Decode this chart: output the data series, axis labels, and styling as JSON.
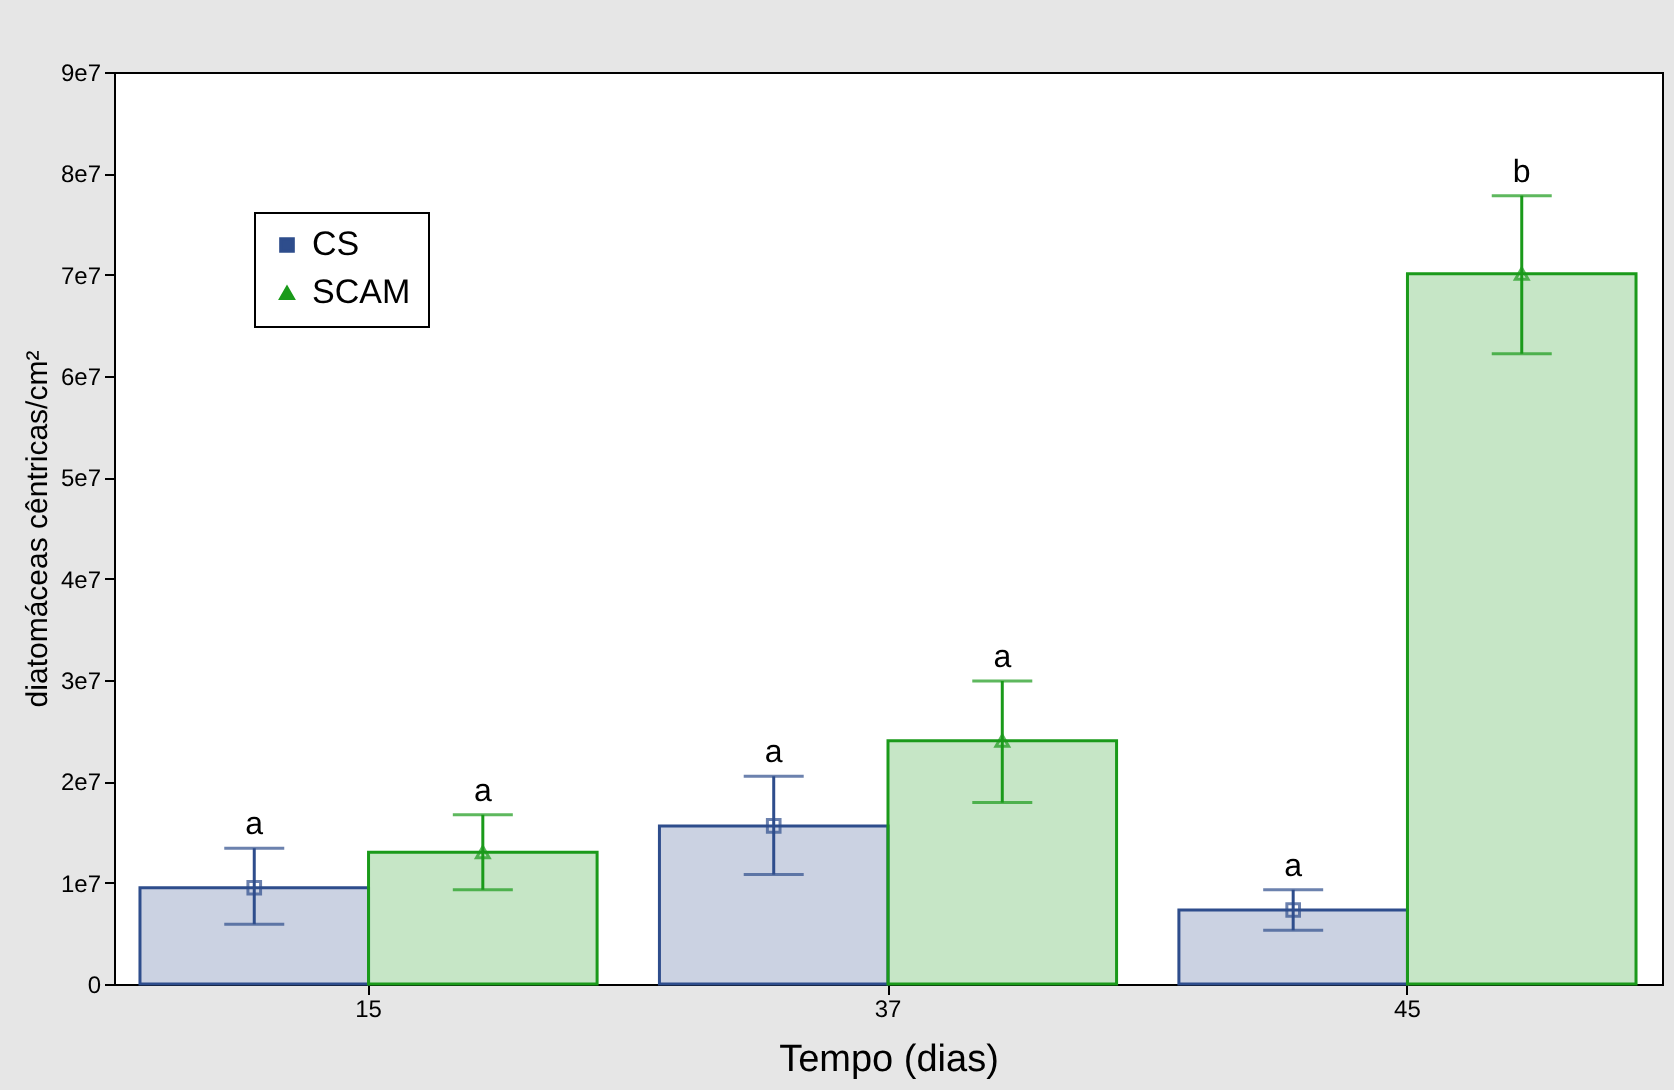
{
  "chart_data": {
    "type": "bar",
    "xlabel": "Tempo (dias)",
    "ylabel": "diatomáceas cêntricas/cm²",
    "categories": [
      "15",
      "37",
      "45"
    ],
    "ylim": [
      0,
      90000000
    ],
    "yticks": [
      0,
      {
        "value": 10000000,
        "label": "1e7"
      },
      {
        "value": 20000000,
        "label": "2e7"
      },
      {
        "value": 30000000,
        "label": "3e7"
      },
      {
        "value": 40000000,
        "label": "4e7"
      },
      {
        "value": 50000000,
        "label": "5e7"
      },
      {
        "value": 60000000,
        "label": "6e7"
      },
      {
        "value": 70000000,
        "label": "7e7"
      },
      {
        "value": 80000000,
        "label": "8e7"
      },
      {
        "value": 90000000,
        "label": "9e7"
      }
    ],
    "grid": false,
    "legend": "top left",
    "series": [
      {
        "name": "CS",
        "color": "#2e4d8c",
        "values": [
          9500000,
          15600000,
          7300000
        ],
        "errors": [
          [
            5900000,
            13400000
          ],
          [
            10800000,
            20500000
          ],
          [
            5300000,
            9300000
          ]
        ],
        "value_labels": [
          "a",
          "a",
          "a"
        ]
      },
      {
        "name": "SCAM",
        "color": "#1a9a1a",
        "values": [
          13000000,
          24000000,
          70100000
        ],
        "errors": [
          [
            9300000,
            16700000
          ],
          [
            17900000,
            29900000
          ],
          [
            62200000,
            77800000
          ]
        ],
        "value_labels": [
          "a",
          "a",
          "b"
        ]
      },
      {
        "type": "scatter",
        "color": "#2e4d8c",
        "marker": "square",
        "x": [
          "15",
          "37",
          "45"
        ],
        "values": [
          9500000,
          15600000,
          7300000
        ]
      },
      {
        "type": "scatter",
        "color": "#1a9a1a",
        "marker": "triangle",
        "x": [
          "15",
          "37",
          "45"
        ],
        "values": [
          13000000,
          24000000,
          70100000
        ]
      }
    ]
  }
}
